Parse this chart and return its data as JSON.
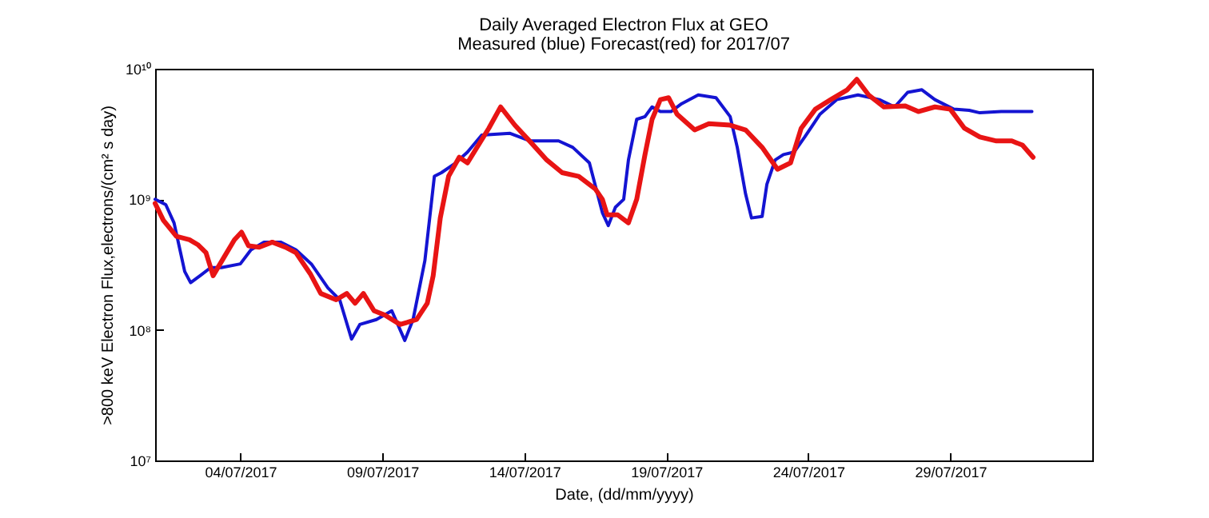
{
  "chart_data": {
    "type": "line",
    "title": "Daily Averaged Electron Flux at GEO",
    "subtitle": "Measured (blue) Forecast(red) for 2017/07",
    "xlabel": "Date, (dd/mm/yyyy)",
    "ylabel": ">800 keV Electron Flux,electrons/(cm² s day)",
    "log": "y",
    "grid": false,
    "marker": "none",
    "line_style": "solid",
    "xlim": [
      "2017-07-01",
      "2017-08-03"
    ],
    "xticks": [
      {
        "value": "2017-07-04",
        "label": "04/07/2017"
      },
      {
        "value": "2017-07-09",
        "label": "09/07/2017"
      },
      {
        "value": "2017-07-14",
        "label": "14/07/2017"
      },
      {
        "value": "2017-07-19",
        "label": "19/07/2017"
      },
      {
        "value": "2017-07-24",
        "label": "24/07/2017"
      },
      {
        "value": "2017-07-29",
        "label": "29/07/2017"
      }
    ],
    "ylim": [
      10000000,
      10000000000
    ],
    "yticks": [
      {
        "value": 10000000,
        "label": "10⁷"
      },
      {
        "value": 100000000,
        "label": "10⁸"
      },
      {
        "value": 1000000000,
        "label": "10⁹"
      },
      {
        "value": 10000000000,
        "label": "10¹⁰"
      }
    ],
    "series": [
      {
        "color": "#1414d2",
        "x": [
          "2017-07-01T00:00",
          "2017-07-01T09:00",
          "2017-07-01T16:00",
          "2017-07-02T01:00",
          "2017-07-02T06:00",
          "2017-07-02T14:00",
          "2017-07-02T23:00",
          "2017-07-03T08:00",
          "2017-07-04T00:00",
          "2017-07-04T09:00",
          "2017-07-04T20:00",
          "2017-07-05T10:00",
          "2017-07-05T23:00",
          "2017-07-06T12:00",
          "2017-07-07T02:00",
          "2017-07-07T12:00",
          "2017-07-07T22:00",
          "2017-07-08T05:00",
          "2017-07-08T19:00",
          "2017-07-09T08:00",
          "2017-07-09T19:00",
          "2017-07-10T02:00",
          "2017-07-10T12:00",
          "2017-07-10T20:00",
          "2017-07-11T02:00",
          "2017-07-11T14:00",
          "2017-07-12T00:00",
          "2017-07-12T12:00",
          "2017-07-13T12:00",
          "2017-07-14T05:00",
          "2017-07-15T05:00",
          "2017-07-15T17:00",
          "2017-07-16T07:00",
          "2017-07-16T18:00",
          "2017-07-16T23:00",
          "2017-07-17T05:00",
          "2017-07-17T12:00",
          "2017-07-17T16:00",
          "2017-07-17T23:00",
          "2017-07-18T06:00",
          "2017-07-18T12:00",
          "2017-07-18T19:00",
          "2017-07-19T04:00",
          "2017-07-19T13:00",
          "2017-07-20T03:00",
          "2017-07-20T18:00",
          "2017-07-21T06:00",
          "2017-07-21T12:00",
          "2017-07-21T19:00",
          "2017-07-22T00:00",
          "2017-07-22T09:00",
          "2017-07-22T13:00",
          "2017-07-22T20:00",
          "2017-07-23T03:00",
          "2017-07-23T12:00",
          "2017-07-23T21:00",
          "2017-07-24T10:00",
          "2017-07-25T00:00",
          "2017-07-25T18:00",
          "2017-07-26T12:00",
          "2017-07-27T01:00",
          "2017-07-27T12:00",
          "2017-07-28T00:00",
          "2017-07-28T11:00",
          "2017-07-29T03:00",
          "2017-07-29T16:00",
          "2017-07-30T01:00",
          "2017-07-30T19:00",
          "2017-07-31T21:00"
        ],
        "values": [
          1000000000.0,
          910000000.0,
          660000000.0,
          280000000.0,
          230000000.0,
          260000000.0,
          300000000.0,
          300000000.0,
          320000000.0,
          410000000.0,
          470000000.0,
          470000000.0,
          410000000.0,
          320000000.0,
          210000000.0,
          170000000.0,
          85000000.0,
          110000000.0,
          120000000.0,
          140000000.0,
          83000000.0,
          120000000.0,
          340000000.0,
          1500000000.0,
          1600000000.0,
          1900000000.0,
          2300000000.0,
          3100000000.0,
          3200000000.0,
          2800000000.0,
          2800000000.0,
          2500000000.0,
          1900000000.0,
          790000000.0,
          630000000.0,
          870000000.0,
          1000000000.0,
          2000000000.0,
          4100000000.0,
          4300000000.0,
          5100000000.0,
          4700000000.0,
          4700000000.0,
          5400000000.0,
          6300000000.0,
          6000000000.0,
          4300000000.0,
          2500000000.0,
          1100000000.0,
          720000000.0,
          740000000.0,
          1300000000.0,
          2000000000.0,
          2200000000.0,
          2300000000.0,
          3000000000.0,
          4500000000.0,
          5800000000.0,
          6300000000.0,
          5800000000.0,
          5100000000.0,
          6600000000.0,
          6900000000.0,
          5800000000.0,
          4900000000.0,
          4800000000.0,
          4600000000.0,
          4700000000.0,
          4700000000.0
        ]
      },
      {
        "color": "#e81414",
        "x": [
          "2017-07-01T00:00",
          "2017-07-01T07:00",
          "2017-07-01T18:00",
          "2017-07-02T05:00",
          "2017-07-02T12:00",
          "2017-07-02T19:00",
          "2017-07-03T01:00",
          "2017-07-03T11:00",
          "2017-07-03T19:00",
          "2017-07-04T01:00",
          "2017-07-04T07:00",
          "2017-07-04T16:00",
          "2017-07-05T03:00",
          "2017-07-05T14:00",
          "2017-07-05T23:00",
          "2017-07-06T11:00",
          "2017-07-06T20:00",
          "2017-07-07T09:00",
          "2017-07-07T18:00",
          "2017-07-08T01:00",
          "2017-07-08T08:00",
          "2017-07-08T17:00",
          "2017-07-09T02:00",
          "2017-07-09T15:00",
          "2017-07-10T05:00",
          "2017-07-10T14:00",
          "2017-07-10T19:00",
          "2017-07-11T01:00",
          "2017-07-11T08:00",
          "2017-07-11T17:00",
          "2017-07-12T00:00",
          "2017-07-12T08:00",
          "2017-07-12T18:00",
          "2017-07-13T04:00",
          "2017-07-13T16:00",
          "2017-07-14T06:00",
          "2017-07-14T19:00",
          "2017-07-15T08:00",
          "2017-07-15T22:00",
          "2017-07-16T12:00",
          "2017-07-16T18:00",
          "2017-07-16T22:00",
          "2017-07-17T07:00",
          "2017-07-17T16:00",
          "2017-07-17T23:00",
          "2017-07-18T06:00",
          "2017-07-18T12:00",
          "2017-07-18T19:00",
          "2017-07-19T02:00",
          "2017-07-19T09:00",
          "2017-07-20T00:00",
          "2017-07-20T12:00",
          "2017-07-21T06:00",
          "2017-07-21T19:00",
          "2017-07-22T09:00",
          "2017-07-22T22:00",
          "2017-07-23T09:00",
          "2017-07-23T18:00",
          "2017-07-24T06:00",
          "2017-07-24T19:00",
          "2017-07-25T09:00",
          "2017-07-25T17:00",
          "2017-07-26T03:00",
          "2017-07-26T16:00",
          "2017-07-27T10:00",
          "2017-07-27T21:00",
          "2017-07-28T11:00",
          "2017-07-29T00:00",
          "2017-07-29T12:00",
          "2017-07-30T01:00",
          "2017-07-30T15:00",
          "2017-07-31T04:00",
          "2017-07-31T13:00",
          "2017-07-31T22:00"
        ],
        "values": [
          930000000.0,
          690000000.0,
          520000000.0,
          490000000.0,
          450000000.0,
          390000000.0,
          260000000.0,
          370000000.0,
          490000000.0,
          560000000.0,
          440000000.0,
          430000000.0,
          470000000.0,
          430000000.0,
          390000000.0,
          270000000.0,
          190000000.0,
          170000000.0,
          190000000.0,
          160000000.0,
          190000000.0,
          140000000.0,
          130000000.0,
          110000000.0,
          120000000.0,
          160000000.0,
          260000000.0,
          720000000.0,
          1500000000.0,
          2100000000.0,
          1900000000.0,
          2500000000.0,
          3500000000.0,
          5100000000.0,
          3700000000.0,
          2700000000.0,
          2000000000.0,
          1600000000.0,
          1500000000.0,
          1200000000.0,
          1000000000.0,
          760000000.0,
          760000000.0,
          660000000.0,
          1000000000.0,
          2200000000.0,
          4100000000.0,
          5800000000.0,
          6000000000.0,
          4500000000.0,
          3400000000.0,
          3800000000.0,
          3700000000.0,
          3400000000.0,
          2500000000.0,
          1700000000.0,
          1900000000.0,
          3500000000.0,
          4900000000.0,
          5800000000.0,
          6900000000.0,
          8300000000.0,
          6300000000.0,
          5100000000.0,
          5200000000.0,
          4700000000.0,
          5100000000.0,
          4900000000.0,
          3500000000.0,
          3000000000.0,
          2800000000.0,
          2800000000.0,
          2600000000.0,
          2100000000.0
        ]
      }
    ]
  }
}
